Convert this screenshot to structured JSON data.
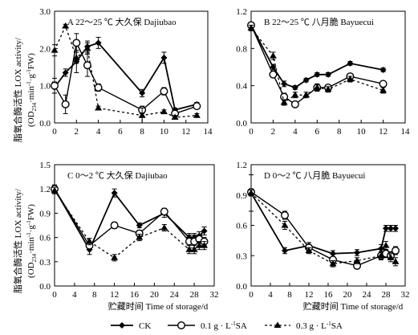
{
  "ylabel": [
    "脂氧合酶活性 LOX activity/",
    "(OD",
    "234",
    "·min",
    "-1",
    "·g",
    "-1",
    "FW)"
  ],
  "xlabel": "贮藏时间 Time of storage/d",
  "legend": [
    {
      "key": "ck",
      "label": "CK"
    },
    {
      "key": "sa01",
      "label_parts": [
        "0.1 g · L",
        "-1",
        "SA"
      ]
    },
    {
      "key": "sa03",
      "label_parts": [
        "0.3 g · L",
        "-1",
        "SA"
      ]
    }
  ],
  "chart_data": [
    {
      "type": "line",
      "title": "A 22～25 ℃ 大久保 Dajiubao",
      "xlim": [
        0,
        14
      ],
      "xticks": [
        0,
        2,
        4,
        6,
        8,
        10,
        12,
        14
      ],
      "ylim": [
        0,
        3.0
      ],
      "yticks": [
        "0.0",
        "1.0",
        "2.0",
        "3.0"
      ],
      "series": [
        {
          "name": "CK",
          "x": [
            0,
            1,
            2,
            3,
            4,
            8,
            10,
            11,
            13
          ],
          "y": [
            0.95,
            1.35,
            1.65,
            2.05,
            2.15,
            0.8,
            1.75,
            0.35,
            0.5
          ],
          "err": [
            0.15,
            0.1,
            0.3,
            0.15,
            0.15,
            0.1,
            0.15,
            0.05,
            0.05
          ]
        },
        {
          "name": "0.1 g·L-1SA",
          "x": [
            0,
            1,
            2,
            3,
            4,
            8,
            10,
            11,
            13
          ],
          "y": [
            1.0,
            0.5,
            2.15,
            1.55,
            0.95,
            0.35,
            0.85,
            0.25,
            0.45
          ],
          "err": [
            0.2,
            0.25,
            0.25,
            0.3,
            0.1,
            0.1,
            0.1,
            0.05,
            0.05
          ]
        },
        {
          "name": "0.3 g·L-1SA",
          "x": [
            0,
            1,
            2,
            3,
            4,
            8,
            10,
            11,
            13
          ],
          "y": [
            1.95,
            2.6,
            1.75,
            2.0,
            0.4,
            0.2,
            0.3,
            0.15,
            0.2
          ],
          "err": [
            0.15,
            0.05,
            0.15,
            0.15,
            0.05,
            0.2,
            0.05,
            0.05,
            0.05
          ]
        }
      ]
    },
    {
      "type": "line",
      "title": "B 22～25 ℃ 八月脆 Bayuecui",
      "xlim": [
        0,
        14
      ],
      "xticks": [
        0,
        2,
        4,
        6,
        8,
        10,
        12,
        14
      ],
      "ylim": [
        0,
        1.2
      ],
      "yticks": [
        "0.0",
        "0.4",
        "0.8",
        "1.2"
      ],
      "series": [
        {
          "name": "CK",
          "x": [
            0,
            2,
            3,
            4,
            5,
            6,
            7,
            9,
            12
          ],
          "y": [
            1.05,
            0.6,
            0.42,
            0.38,
            0.46,
            0.52,
            0.52,
            0.64,
            0.57
          ],
          "err": [
            0.03,
            0.03,
            0.03,
            0.02,
            0.02,
            0.02,
            0.02,
            0.02,
            0.02
          ]
        },
        {
          "name": "0.1 g·L-1SA",
          "x": [
            0,
            2,
            3,
            4,
            6,
            7,
            9,
            12
          ],
          "y": [
            1.05,
            0.52,
            0.28,
            0.2,
            0.38,
            0.38,
            0.5,
            0.42
          ],
          "err": [
            0.03,
            0.03,
            0.04,
            0.03,
            0.04,
            0.03,
            0.03,
            0.03
          ]
        },
        {
          "name": "0.3 g·L-1SA",
          "x": [
            0,
            2,
            3,
            4,
            5,
            6,
            7,
            9,
            12
          ],
          "y": [
            1.02,
            0.72,
            0.22,
            0.3,
            0.3,
            0.38,
            0.36,
            0.47,
            0.35
          ],
          "err": [
            0.03,
            0.04,
            0.03,
            0.03,
            0.03,
            0.03,
            0.03,
            0.03,
            0.03
          ]
        }
      ]
    },
    {
      "type": "line",
      "title": "C 0～2 ℃ 大久保 Dajiubao",
      "xlim": [
        0,
        32
      ],
      "xticks": [
        0,
        4,
        8,
        12,
        16,
        20,
        24,
        28,
        32
      ],
      "ylim": [
        0,
        1.5
      ],
      "yticks": [
        "0.0",
        "0.3",
        "0.6",
        "0.9",
        "1.2",
        "1.5"
      ],
      "series": [
        {
          "name": "CK",
          "x": [
            0,
            7,
            12,
            17,
            22,
            27,
            28,
            29,
            30
          ],
          "y": [
            1.2,
            0.45,
            1.15,
            0.75,
            0.9,
            0.6,
            0.6,
            0.62,
            0.68
          ],
          "err": [
            0.05,
            0.06,
            0.05,
            0.03,
            0.05,
            0.05,
            0.05,
            0.05,
            0.05
          ]
        },
        {
          "name": "0.1 g·L-1SA",
          "x": [
            0,
            7,
            12,
            17,
            22,
            27,
            28,
            29,
            30
          ],
          "y": [
            1.2,
            0.5,
            0.75,
            0.65,
            0.92,
            0.55,
            0.55,
            0.58,
            0.55
          ],
          "err": [
            0.04,
            0.04,
            0.04,
            0.04,
            0.04,
            0.08,
            0.08,
            0.05,
            0.05
          ]
        },
        {
          "name": "0.3 g·L-1SA",
          "x": [
            0,
            7,
            12,
            17,
            22,
            27,
            28,
            29,
            30
          ],
          "y": [
            1.18,
            0.55,
            0.35,
            0.6,
            0.72,
            0.45,
            0.45,
            0.5,
            0.5
          ],
          "err": [
            0.04,
            0.04,
            0.04,
            0.04,
            0.04,
            0.05,
            0.05,
            0.05,
            0.05
          ]
        }
      ]
    },
    {
      "type": "line",
      "title": "D 0～2 ℃ 八月脆 Bayuecui",
      "xlim": [
        0,
        32
      ],
      "xticks": [
        0,
        4,
        8,
        12,
        16,
        20,
        24,
        28,
        32
      ],
      "ylim": [
        0,
        1.2
      ],
      "yticks": [
        "0.0",
        "0.3",
        "0.6",
        "0.9",
        "1.2"
      ],
      "series": [
        {
          "name": "CK",
          "x": [
            0,
            7,
            12,
            17,
            22,
            27,
            28,
            29,
            30
          ],
          "y": [
            0.92,
            0.35,
            0.4,
            0.32,
            0.33,
            0.37,
            0.57,
            0.57,
            0.57
          ],
          "err": [
            0.18,
            0.03,
            0.03,
            0.03,
            0.03,
            0.04,
            0.03,
            0.03,
            0.03
          ]
        },
        {
          "name": "0.1 g·L-1SA",
          "x": [
            0,
            7,
            12,
            17,
            22,
            27,
            28,
            29,
            30
          ],
          "y": [
            0.93,
            0.7,
            0.38,
            0.26,
            0.2,
            0.3,
            0.32,
            0.3,
            0.35
          ],
          "err": [
            0.03,
            0.04,
            0.03,
            0.03,
            0.03,
            0.04,
            0.04,
            0.04,
            0.04
          ]
        },
        {
          "name": "0.3 g·L-1SA",
          "x": [
            0,
            7,
            12,
            17,
            22,
            27,
            28,
            29,
            30
          ],
          "y": [
            0.92,
            0.6,
            0.35,
            0.22,
            0.25,
            0.3,
            0.4,
            0.28,
            0.24
          ],
          "err": [
            0.03,
            0.04,
            0.03,
            0.03,
            0.03,
            0.04,
            0.04,
            0.04,
            0.04
          ]
        }
      ]
    }
  ]
}
